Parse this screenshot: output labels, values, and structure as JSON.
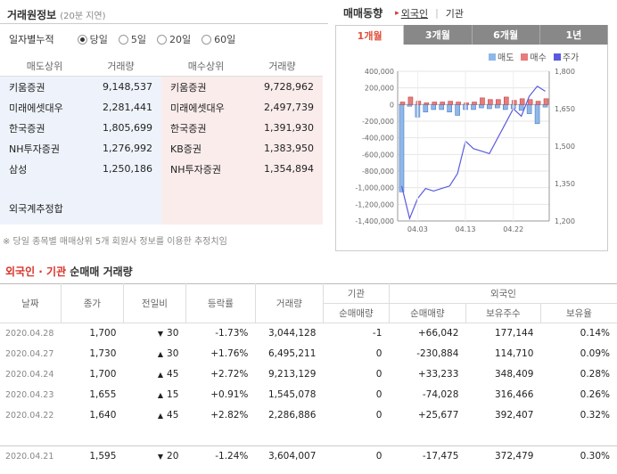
{
  "broker": {
    "title": "거래원정보",
    "subtitle": "(20분 지연)",
    "cumulative_label": "일자별누적",
    "options": [
      "당일",
      "5일",
      "20일",
      "60일"
    ],
    "selected": 0,
    "headers": {
      "sell": "매도상위",
      "sell_vol": "거래량",
      "buy": "매수상위",
      "buy_vol": "거래량"
    },
    "sell": [
      {
        "name": "키움증권",
        "vol": "9,148,537"
      },
      {
        "name": "미래에셋대우",
        "vol": "2,281,441"
      },
      {
        "name": "한국증권",
        "vol": "1,805,699"
      },
      {
        "name": "NH투자증권",
        "vol": "1,276,992"
      },
      {
        "name": "삼성",
        "vol": "1,250,186"
      }
    ],
    "buy": [
      {
        "name": "키움증권",
        "vol": "9,728,962"
      },
      {
        "name": "미래에셋대우",
        "vol": "2,497,739"
      },
      {
        "name": "한국증권",
        "vol": "1,391,930"
      },
      {
        "name": "KB증권",
        "vol": "1,383,950"
      },
      {
        "name": "NH투자증권",
        "vol": "1,354,894"
      }
    ],
    "foreign_estimate": "외국계추정합",
    "note": "※ 당일 종목별 매매상위 5개 회원사 정보를 이용한 추정치임"
  },
  "trend": {
    "title": "매매동향",
    "filter_foreign": "외국인",
    "filter_inst": "기관",
    "tabs": [
      "1개월",
      "3개월",
      "6개월",
      "1년"
    ],
    "active_tab": 0,
    "legend": [
      {
        "name": "매도",
        "color": "#8fb8ea"
      },
      {
        "name": "매수",
        "color": "#e87b7b"
      },
      {
        "name": "주가",
        "color": "#5a5ae0"
      }
    ]
  },
  "chart_data": {
    "type": "bar",
    "x_ticks": [
      "04.03",
      "04.13",
      "04.22"
    ],
    "y_left_ticks": [
      "400,000",
      "200,000",
      "0",
      "-200,000",
      "-400,000",
      "-600,000",
      "-800,000",
      "-1,000,000",
      "-1,200,000",
      "-1,400,000"
    ],
    "y_right_ticks": [
      "1,800",
      "1,650",
      "1,500",
      "1,350",
      "1,200"
    ],
    "ylim_left": [
      -1400000,
      400000
    ],
    "ylim_right": [
      1200,
      1800
    ],
    "series": [
      {
        "name": "매도",
        "values": [
          -1050000,
          -20000,
          -150000,
          -90000,
          -60000,
          -60000,
          -90000,
          -130000,
          -60000,
          -60000,
          -40000,
          -50000,
          -40000,
          -60000,
          -50000,
          -70000,
          -110000,
          -230000,
          -30000
        ]
      },
      {
        "name": "매수",
        "values": [
          30000,
          90000,
          40000,
          20000,
          30000,
          30000,
          40000,
          30000,
          20000,
          30000,
          80000,
          60000,
          60000,
          90000,
          50000,
          70000,
          60000,
          40000,
          70000
        ]
      },
      {
        "name": "주가",
        "values": [
          1340,
          1210,
          1290,
          1330,
          1320,
          1330,
          1340,
          1390,
          1520,
          1490,
          1480,
          1470,
          1530,
          1590,
          1650,
          1620,
          1700,
          1740,
          1720
        ]
      }
    ]
  },
  "netbuy": {
    "title_red": "외국인 · 기관",
    "title_rest": " 순매매 거래량",
    "headers": {
      "date": "날짜",
      "close": "종가",
      "change": "전일비",
      "rate": "등락률",
      "volume": "거래량",
      "inst": "기관",
      "inst_net": "순매매량",
      "foreign": "외국인",
      "foreign_net": "순매매량",
      "holdings": "보유주수",
      "ratio": "보유율"
    },
    "rows": [
      {
        "date": "2020.04.28",
        "close": "1,700",
        "dir": "dn",
        "change": "30",
        "rate": "-1.73%",
        "volume": "3,044,128",
        "inst": "-1",
        "inst_dir": "dn",
        "foreign": "+66,042",
        "foreign_dir": "up",
        "holdings": "177,144",
        "ratio": "0.14%"
      },
      {
        "date": "2020.04.27",
        "close": "1,730",
        "dir": "up",
        "change": "30",
        "rate": "+1.76%",
        "volume": "6,495,211",
        "inst": "0",
        "inst_dir": "",
        "foreign": "-230,884",
        "foreign_dir": "dn",
        "holdings": "114,710",
        "ratio": "0.09%"
      },
      {
        "date": "2020.04.24",
        "close": "1,700",
        "dir": "up",
        "change": "45",
        "rate": "+2.72%",
        "volume": "9,213,129",
        "inst": "0",
        "inst_dir": "",
        "foreign": "+33,233",
        "foreign_dir": "up",
        "holdings": "348,409",
        "ratio": "0.28%"
      },
      {
        "date": "2020.04.23",
        "close": "1,655",
        "dir": "up",
        "change": "15",
        "rate": "+0.91%",
        "volume": "1,545,078",
        "inst": "0",
        "inst_dir": "",
        "foreign": "-74,028",
        "foreign_dir": "dn",
        "holdings": "316,466",
        "ratio": "0.26%"
      },
      {
        "date": "2020.04.22",
        "close": "1,640",
        "dir": "up",
        "change": "45",
        "rate": "+2.82%",
        "volume": "2,286,886",
        "inst": "0",
        "inst_dir": "",
        "foreign": "+25,677",
        "foreign_dir": "up",
        "holdings": "392,407",
        "ratio": "0.32%"
      },
      {
        "date": "2020.04.21",
        "close": "1,595",
        "dir": "dn",
        "change": "20",
        "rate": "-1.24%",
        "volume": "3,604,007",
        "inst": "0",
        "inst_dir": "",
        "foreign": "-17,475",
        "foreign_dir": "dn",
        "holdings": "372,479",
        "ratio": "0.30%"
      }
    ]
  }
}
